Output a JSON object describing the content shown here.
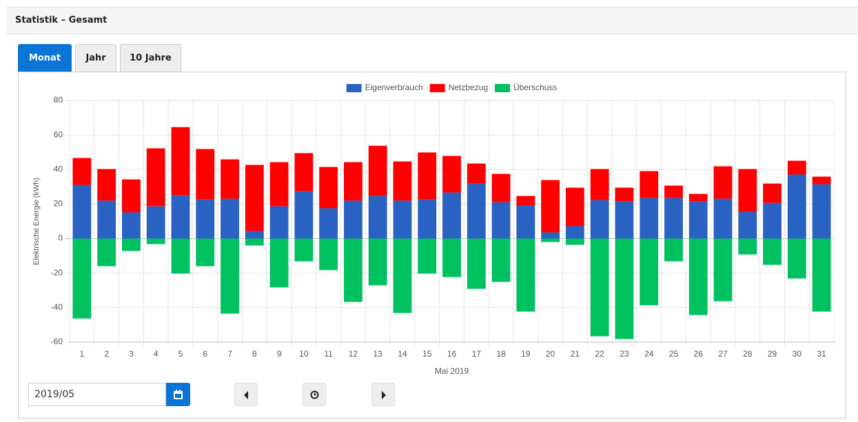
{
  "header": {
    "title": "Statistik – Gesamt"
  },
  "tabs": [
    "Monat",
    "Jahr",
    "10 Jahre"
  ],
  "date_input": "2019/05",
  "chart_data": {
    "type": "bar",
    "stacked": true,
    "y_label": "Elektrische Energie (kWh)",
    "x_label": "Mai 2019",
    "legend": "top",
    "grid": true,
    "ylim": [
      -60,
      80
    ],
    "yticks": [
      -60,
      -40,
      -20,
      0,
      20,
      40,
      60,
      80
    ],
    "categories": [
      "1",
      "2",
      "3",
      "4",
      "5",
      "6",
      "7",
      "8",
      "9",
      "10",
      "11",
      "12",
      "13",
      "14",
      "15",
      "16",
      "17",
      "18",
      "19",
      "20",
      "21",
      "22",
      "23",
      "24",
      "25",
      "26",
      "27",
      "28",
      "29",
      "30",
      "31"
    ],
    "series": [
      {
        "name": "Eigenverbrauch",
        "color": "#2a62c3",
        "values": [
          31.1,
          22,
          15.2,
          18.7,
          25.1,
          22.7,
          23.1,
          4.4,
          18.7,
          27.5,
          17.6,
          22,
          24.7,
          22,
          22.7,
          26.7,
          31.9,
          21.1,
          19.1,
          3.6,
          7.2,
          22.3,
          21.5,
          23.5,
          23.5,
          21.5,
          23.1,
          15.6,
          20.7,
          37.1,
          31.5
        ]
      },
      {
        "name": "Netzbezug",
        "color": "#ff0000",
        "values": [
          15.6,
          18.3,
          19.1,
          33.6,
          39.5,
          29.2,
          22.8,
          38.3,
          25.6,
          22,
          23.9,
          22.3,
          29.1,
          22.7,
          27.2,
          21.2,
          11.6,
          16.4,
          5.6,
          30.3,
          22.3,
          18,
          8,
          15.6,
          7.2,
          4.4,
          18.8,
          24.7,
          11.2,
          8,
          4.4
        ]
      },
      {
        "name": "Überschuss",
        "color": "#00c160",
        "values": [
          -46.3,
          -16,
          -7.2,
          -3.2,
          -20.3,
          -16,
          -43.5,
          -4,
          -28.3,
          -13.2,
          -18.3,
          -36.7,
          -27.1,
          -43.1,
          -20.3,
          -22.3,
          -29.1,
          -25.1,
          -42.3,
          -2,
          -3.6,
          -56.6,
          -58.2,
          -38.7,
          -13.2,
          -44.3,
          -36.3,
          -9.2,
          -15.2,
          -23.1,
          -42.3
        ]
      }
    ]
  }
}
